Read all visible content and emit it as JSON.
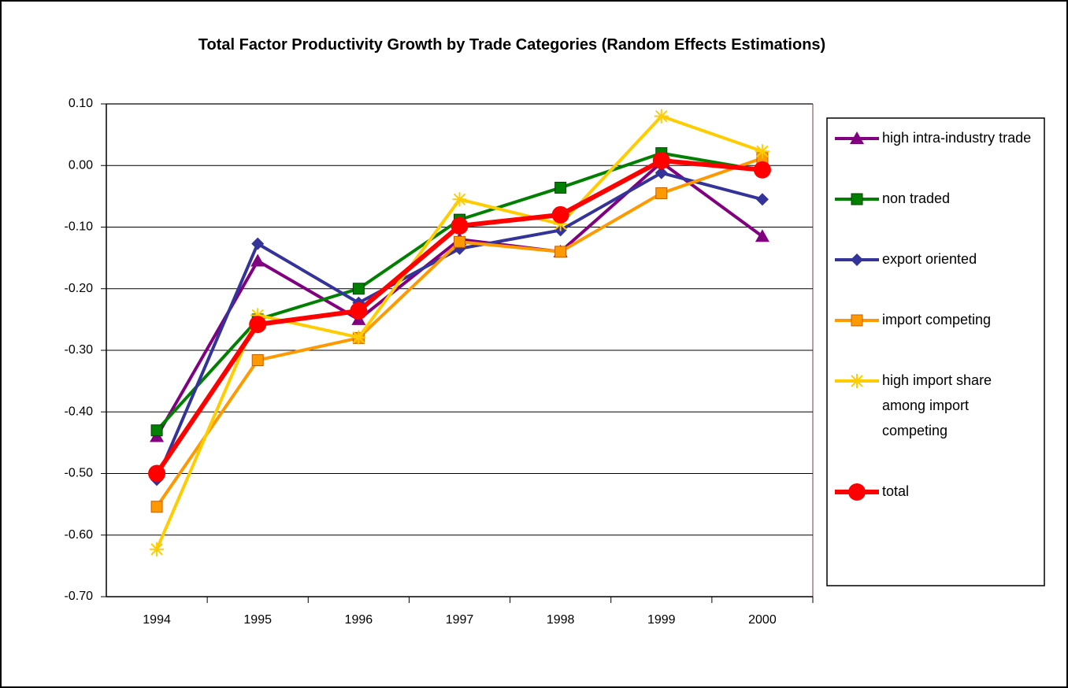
{
  "chart_data": {
    "type": "line",
    "title": "Total Factor Productivity Growth by Trade Categories (Random Effects Estimations)",
    "categories": [
      "1994",
      "1995",
      "1996",
      "1997",
      "1998",
      "1999",
      "2000"
    ],
    "ylim": [
      -0.7,
      0.1
    ],
    "yticks": [
      {
        "value": -0.7,
        "label": "-0.70"
      },
      {
        "value": -0.6,
        "label": "-0.60"
      },
      {
        "value": -0.5,
        "label": "-0.50"
      },
      {
        "value": -0.4,
        "label": "-0.40"
      },
      {
        "value": -0.3,
        "label": "-0.30"
      },
      {
        "value": -0.2,
        "label": "-0.20"
      },
      {
        "value": -0.1,
        "label": "-0.10"
      },
      {
        "value": 0,
        "label": "0.00"
      },
      {
        "value": 0.1,
        "label": "0.10"
      }
    ],
    "grid": true,
    "legend": "right",
    "series": [
      {
        "name": "high intra-industry trade",
        "color": "#800080",
        "marker": "triangle",
        "values": [
          -0.44,
          -0.155,
          -0.25,
          -0.12,
          -0.14,
          0.005,
          -0.115
        ]
      },
      {
        "name": "non traded",
        "color": "#008000",
        "marker": "square",
        "values": [
          -0.43,
          -0.25,
          -0.2,
          -0.088,
          -0.036,
          0.02,
          -0.008
        ]
      },
      {
        "name": "export oriented",
        "color": "#333399",
        "marker": "diamond",
        "values": [
          -0.51,
          -0.127,
          -0.223,
          -0.135,
          -0.105,
          -0.012,
          -0.055
        ]
      },
      {
        "name": "import competing",
        "color": "#ff9900",
        "marker": "square",
        "values": [
          -0.554,
          -0.316,
          -0.28,
          -0.124,
          -0.14,
          -0.045,
          0.012
        ]
      },
      {
        "name": "high import share among import competing",
        "color": "#ffcc00",
        "marker": "star",
        "values": [
          -0.623,
          -0.243,
          -0.279,
          -0.055,
          -0.095,
          0.08,
          0.023
        ]
      },
      {
        "name": "total",
        "color": "#ff0000",
        "marker": "circle",
        "values": [
          -0.5,
          -0.258,
          -0.236,
          -0.098,
          -0.08,
          0.008,
          -0.007
        ]
      }
    ]
  }
}
